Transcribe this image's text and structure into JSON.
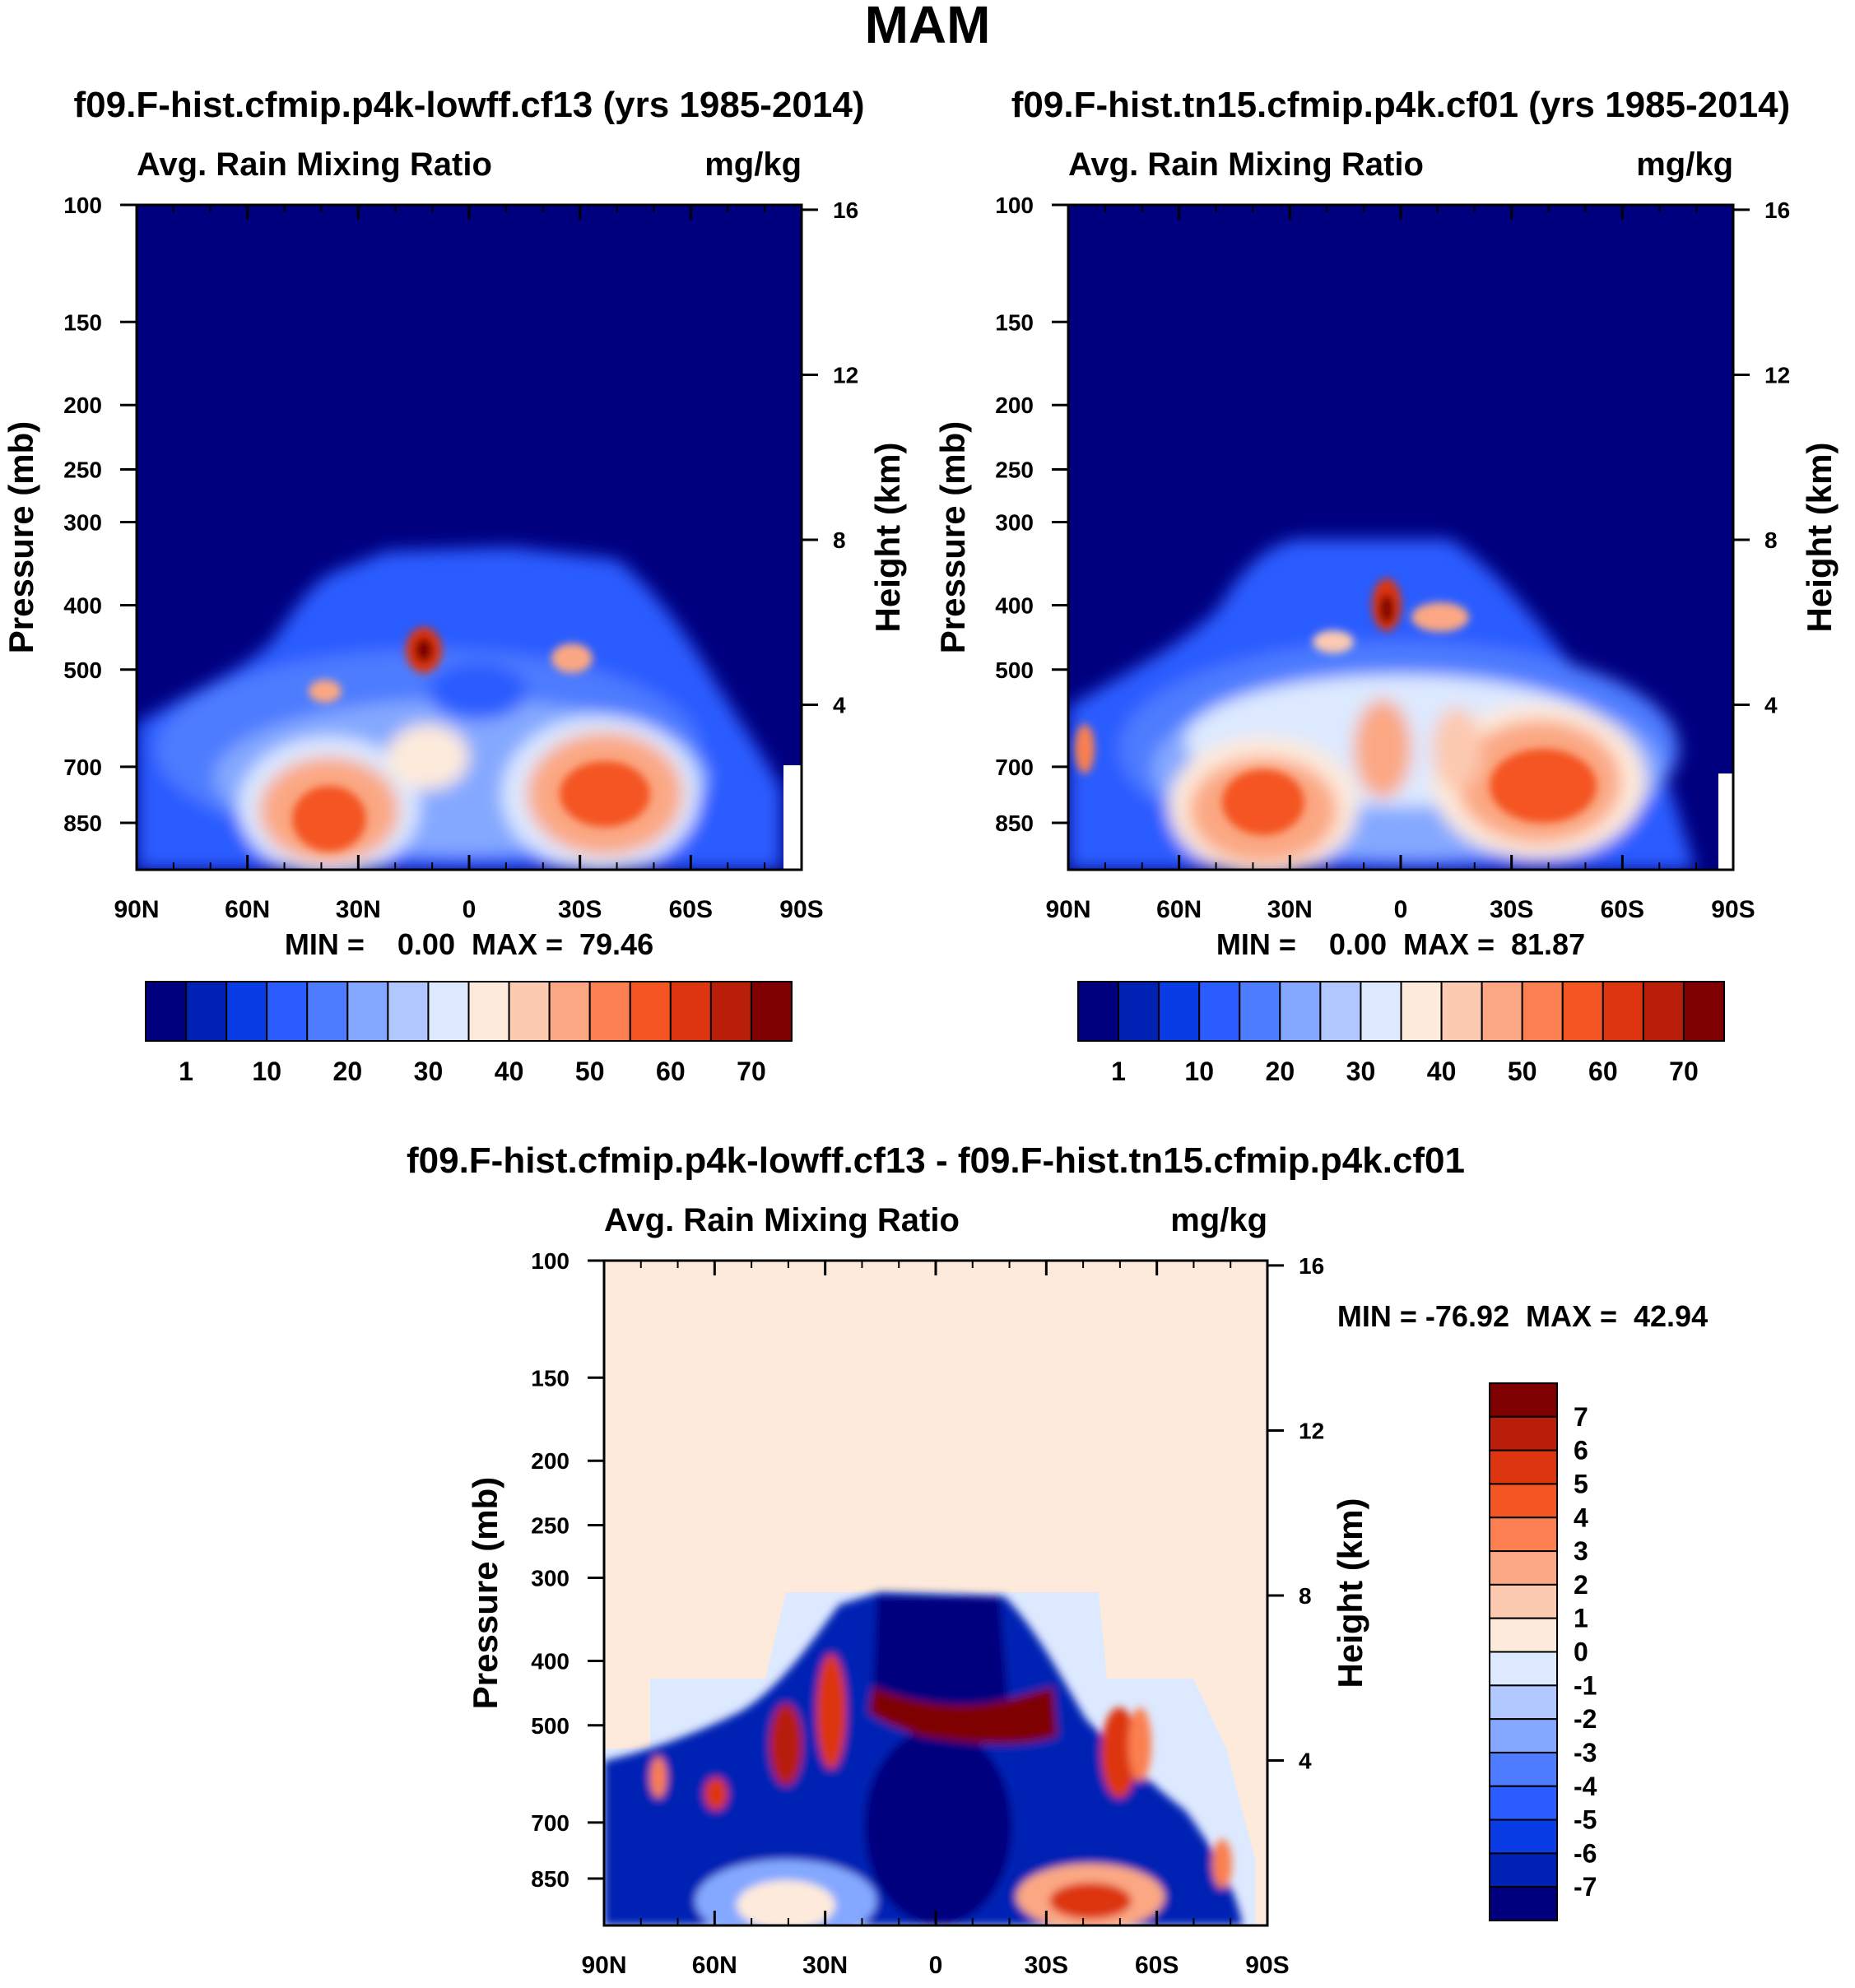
{
  "figure_title": "MAM",
  "chart_data": [
    {
      "type": "heatmap",
      "title": "f09.F-hist.cfmip.p4k-lowff.cf13 (yrs 1985-2014)",
      "subtitle_left": "Avg. Rain Mixing Ratio",
      "subtitle_right": "mg/kg",
      "ylabel": "Pressure (mb)",
      "ylabel_right": "Height (km)",
      "x_ticks": [
        "90N",
        "60N",
        "30N",
        "0",
        "30S",
        "60S",
        "90S"
      ],
      "y_ticks": [
        "100",
        "150",
        "200",
        "250",
        "300",
        "400",
        "500",
        "700",
        "850"
      ],
      "y_ticks_right": [
        "16",
        "12",
        "8",
        "4"
      ],
      "stats": "MIN =    0.00  MAX =  79.46",
      "min": 0.0,
      "max": 79.46,
      "colorbar_labels": [
        "1",
        "10",
        "20",
        "30",
        "40",
        "50",
        "60",
        "70"
      ],
      "colorbar_orientation": "horizontal",
      "colorbar_colors": [
        "#00007f",
        "#0022b4",
        "#0a3ce6",
        "#2a5cff",
        "#4d7cff",
        "#84a8ff",
        "#b0c8ff",
        "#dde9ff",
        "#fdeadb",
        "#fcc9b1",
        "#fba783",
        "#fb7f50",
        "#f45523",
        "#dd3510",
        "#b81e0a",
        "#7f0000"
      ]
    },
    {
      "type": "heatmap",
      "title": "f09.F-hist.tn15.cfmip.p4k.cf01 (yrs 1985-2014)",
      "subtitle_left": "Avg. Rain Mixing Ratio",
      "subtitle_right": "mg/kg",
      "ylabel": "Pressure (mb)",
      "ylabel_right": "Height (km)",
      "x_ticks": [
        "90N",
        "60N",
        "30N",
        "0",
        "30S",
        "60S",
        "90S"
      ],
      "y_ticks": [
        "100",
        "150",
        "200",
        "250",
        "300",
        "400",
        "500",
        "700",
        "850"
      ],
      "y_ticks_right": [
        "16",
        "12",
        "8",
        "4"
      ],
      "stats": "MIN =    0.00  MAX =  81.87",
      "min": 0.0,
      "max": 81.87,
      "colorbar_labels": [
        "1",
        "10",
        "20",
        "30",
        "40",
        "50",
        "60",
        "70"
      ],
      "colorbar_orientation": "horizontal",
      "colorbar_colors": [
        "#00007f",
        "#0022b4",
        "#0a3ce6",
        "#2a5cff",
        "#4d7cff",
        "#84a8ff",
        "#b0c8ff",
        "#dde9ff",
        "#fdeadb",
        "#fcc9b1",
        "#fba783",
        "#fb7f50",
        "#f45523",
        "#dd3510",
        "#b81e0a",
        "#7f0000"
      ]
    },
    {
      "type": "heatmap",
      "title": "f09.F-hist.cfmip.p4k-lowff.cf13 - f09.F-hist.tn15.cfmip.p4k.cf01",
      "subtitle_left": "Avg. Rain Mixing Ratio",
      "subtitle_right": "mg/kg",
      "ylabel": "Pressure (mb)",
      "ylabel_right": "Height (km)",
      "x_ticks": [
        "90N",
        "60N",
        "30N",
        "0",
        "30S",
        "60S",
        "90S"
      ],
      "y_ticks": [
        "100",
        "150",
        "200",
        "250",
        "300",
        "400",
        "500",
        "700",
        "850"
      ],
      "y_ticks_right": [
        "16",
        "12",
        "8",
        "4"
      ],
      "stats": "MIN = -76.92  MAX =  42.94",
      "min": -76.92,
      "max": 42.94,
      "colorbar_labels": [
        "7",
        "6",
        "5",
        "4",
        "3",
        "2",
        "1",
        "0",
        "-1",
        "-2",
        "-3",
        "-4",
        "-5",
        "-6",
        "-7"
      ],
      "colorbar_orientation": "vertical",
      "colorbar_colors": [
        "#7f0000",
        "#b81e0a",
        "#dd3510",
        "#f45523",
        "#fb7f50",
        "#fba783",
        "#fcc9b1",
        "#fdeadb",
        "#dde9ff",
        "#b0c8ff",
        "#84a8ff",
        "#4d7cff",
        "#2a5cff",
        "#0a3ce6",
        "#0022b4",
        "#00007f"
      ]
    }
  ]
}
